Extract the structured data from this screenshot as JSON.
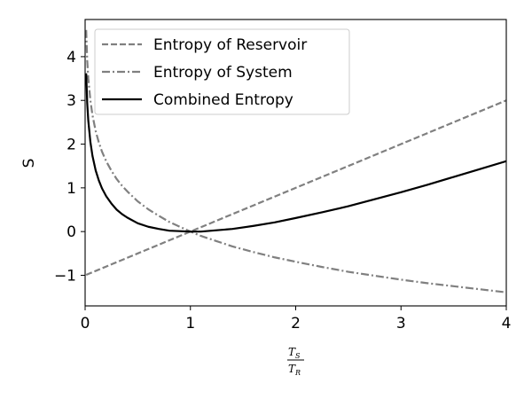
{
  "chart_data": {
    "type": "line",
    "title": "",
    "xlabel": {
      "numerator": "T",
      "numerator_sub": "S",
      "denominator": "T",
      "denominator_sub": "R"
    },
    "ylabel": "S",
    "xlim": [
      0,
      4
    ],
    "ylim": [
      -1.7,
      4.85
    ],
    "xticks": [
      0,
      1,
      2,
      3,
      4
    ],
    "yticks": [
      -1,
      0,
      1,
      2,
      3,
      4
    ],
    "ytick_labels": [
      "−1",
      "0",
      "1",
      "2",
      "3",
      "4"
    ],
    "grid": false,
    "legend_position": "top-left",
    "x": [
      0.01,
      0.02,
      0.03,
      0.05,
      0.07,
      0.1,
      0.13,
      0.16,
      0.2,
      0.25,
      0.3,
      0.35,
      0.4,
      0.5,
      0.6,
      0.7,
      0.8,
      0.9,
      1.0,
      1.1,
      1.25,
      1.4,
      1.6,
      1.8,
      2.0,
      2.25,
      2.5,
      2.75,
      3.0,
      3.25,
      3.5,
      3.75,
      4.0
    ],
    "series": [
      {
        "name": "Entropy of Reservoir",
        "style": "dashed",
        "color": "#808080",
        "values": [
          -0.99,
          -0.98,
          -0.97,
          -0.95,
          -0.93,
          -0.9,
          -0.87,
          -0.84,
          -0.8,
          -0.75,
          -0.7,
          -0.65,
          -0.6,
          -0.5,
          -0.4,
          -0.3,
          -0.2,
          -0.1,
          0.0,
          0.1,
          0.25,
          0.4,
          0.6,
          0.8,
          1.0,
          1.25,
          1.5,
          1.75,
          2.0,
          2.25,
          2.5,
          2.75,
          3.0
        ]
      },
      {
        "name": "Entropy of System",
        "style": "dashdot",
        "color": "#808080",
        "values": [
          4.61,
          3.91,
          3.51,
          3.0,
          2.66,
          2.3,
          2.04,
          1.83,
          1.61,
          1.39,
          1.2,
          1.05,
          0.92,
          0.69,
          0.51,
          0.36,
          0.22,
          0.11,
          0.0,
          -0.1,
          -0.22,
          -0.34,
          -0.47,
          -0.59,
          -0.69,
          -0.81,
          -0.92,
          -1.01,
          -1.1,
          -1.18,
          -1.25,
          -1.32,
          -1.39
        ]
      },
      {
        "name": "Combined Entropy",
        "style": "solid",
        "color": "#000000",
        "values": [
          3.62,
          2.93,
          2.54,
          2.05,
          1.73,
          1.4,
          1.17,
          0.99,
          0.81,
          0.64,
          0.5,
          0.4,
          0.32,
          0.19,
          0.11,
          0.06,
          0.02,
          0.01,
          0.0,
          0.0,
          0.03,
          0.06,
          0.13,
          0.21,
          0.31,
          0.44,
          0.58,
          0.74,
          0.9,
          1.07,
          1.25,
          1.43,
          1.61
        ]
      }
    ]
  }
}
